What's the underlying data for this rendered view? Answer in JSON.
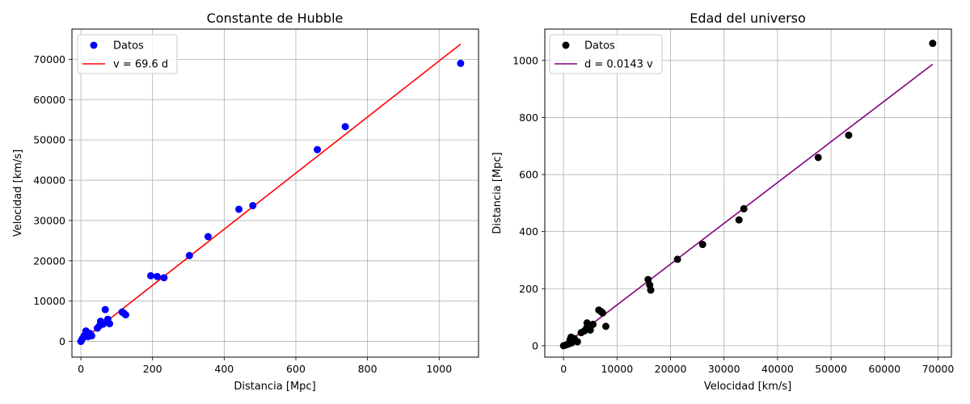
{
  "charts": [
    {
      "title": "Constante de Hubble",
      "xlabel": "Distancia [Mpc]",
      "ylabel": "Velocidad [km/s]",
      "xticks": [
        "0",
        "200",
        "400",
        "600",
        "800",
        "1000"
      ],
      "yticks": [
        "0",
        "10000",
        "20000",
        "30000",
        "40000",
        "50000",
        "60000",
        "70000"
      ],
      "legend": {
        "scatter_label": "Datos",
        "line_label": "v = 69.6 d"
      }
    },
    {
      "title": "Edad del universo",
      "xlabel": "Velocidad [km/s]",
      "ylabel": "Distancia [Mpc]",
      "xticks": [
        "0",
        "10000",
        "20000",
        "30000",
        "40000",
        "50000",
        "60000",
        "70000"
      ],
      "yticks": [
        "0",
        "200",
        "400",
        "600",
        "800",
        "1000"
      ],
      "legend": {
        "scatter_label": "Datos",
        "line_label": "d = 0.0143 v"
      }
    }
  ],
  "chart_data": [
    {
      "type": "scatter",
      "title": "Constante de Hubble",
      "xlabel": "Distancia [Mpc]",
      "ylabel": "Velocidad [km/s]",
      "xlim": [
        -25,
        1110
      ],
      "ylim": [
        -3900,
        77500
      ],
      "grid": true,
      "legend_position": "top-left",
      "series": [
        {
          "name": "Datos",
          "kind": "scatter",
          "color": "#0000ff",
          "x": [
            0,
            3,
            6,
            10,
            14,
            17,
            20,
            25,
            30,
            46,
            52,
            55,
            62,
            68,
            75,
            80,
            115,
            120,
            125,
            195,
            213,
            232,
            303,
            355,
            441,
            480,
            660,
            738,
            1060
          ],
          "y": [
            0,
            500,
            900,
            1500,
            2600,
            1800,
            1200,
            2000,
            1400,
            3300,
            3900,
            5000,
            4300,
            7900,
            5500,
            4400,
            7300,
            7000,
            6600,
            16300,
            16100,
            15800,
            21300,
            26000,
            32800,
            33700,
            47600,
            53300,
            69000
          ]
        },
        {
          "name": "v = 69.6 d",
          "kind": "line",
          "color": "#ff0000",
          "x": [
            0,
            1060
          ],
          "y": [
            0,
            73776
          ]
        }
      ]
    },
    {
      "type": "scatter",
      "title": "Edad del universo",
      "xlabel": "Velocidad [km/s]",
      "ylabel": "Distancia [Mpc]",
      "xlim": [
        -3500,
        72500
      ],
      "ylim": [
        -40,
        1110
      ],
      "grid": true,
      "legend_position": "top-left",
      "series": [
        {
          "name": "Datos",
          "kind": "scatter",
          "color": "#000000",
          "x": [
            0,
            500,
            900,
            1500,
            2600,
            1800,
            1200,
            2000,
            1400,
            3300,
            3900,
            5000,
            4300,
            7900,
            5500,
            4400,
            7300,
            7000,
            6600,
            16300,
            16100,
            15800,
            21300,
            26000,
            32800,
            33700,
            47600,
            53300,
            69000
          ],
          "y": [
            0,
            3,
            6,
            10,
            14,
            17,
            20,
            25,
            30,
            46,
            52,
            55,
            62,
            68,
            75,
            80,
            115,
            120,
            125,
            195,
            213,
            232,
            303,
            355,
            441,
            480,
            660,
            738,
            1060
          ]
        },
        {
          "name": "d = 0.0143 v",
          "kind": "line",
          "color": "#800080",
          "x": [
            0,
            69000
          ],
          "y": [
            0,
            986.7
          ]
        }
      ]
    }
  ]
}
